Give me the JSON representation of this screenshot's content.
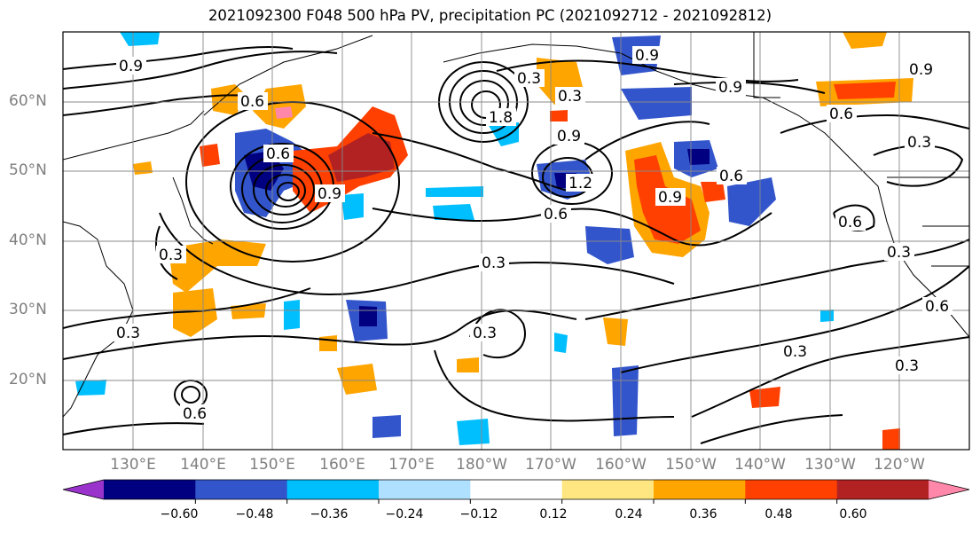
{
  "title": "2021092300 F048 500 hPa PV, precipitation PC (2021092712 - 2021092812)",
  "lat_labels": [
    "60°N",
    "50°N",
    "40°N",
    "30°N",
    "20°N"
  ],
  "lon_labels": [
    "130°E",
    "140°E",
    "150°E",
    "160°E",
    "170°E",
    "180°W",
    "170°W",
    "160°W",
    "150°W",
    "140°W",
    "130°W",
    "120°W"
  ],
  "contour_labels": [
    "0.9",
    "0.9",
    "0.9",
    "0.9",
    "0.6",
    "0.6",
    "0.6",
    "0.6",
    "0.6",
    "0.6",
    "0.3",
    "0.3",
    "0.3",
    "0.3",
    "0.3",
    "0.3",
    "0.3",
    "0.3",
    "0.3",
    "0.9",
    "0.9",
    "0.6",
    "1.2",
    "1.8",
    "0.9",
    "0.6",
    "0.3"
  ],
  "colorbar": {
    "ticks": [
      "−0.60",
      "−0.48",
      "−0.36",
      "−0.24",
      "−0.12",
      "0.12",
      "0.24",
      "0.36",
      "0.48",
      "0.60"
    ],
    "colors": [
      "#9933cc",
      "#000080",
      "#3355cc",
      "#00bfff",
      "#b0e0ff",
      "#ffffff",
      "#ffe680",
      "#ffa500",
      "#ff4000",
      "#b22222",
      "#ff88aa"
    ]
  },
  "map": {
    "lat_range": [
      10,
      70
    ],
    "lon_range_east": [
      120,
      250
    ],
    "shading_meaning": "precipitation PC",
    "contour_meaning": "500 hPa PV"
  }
}
